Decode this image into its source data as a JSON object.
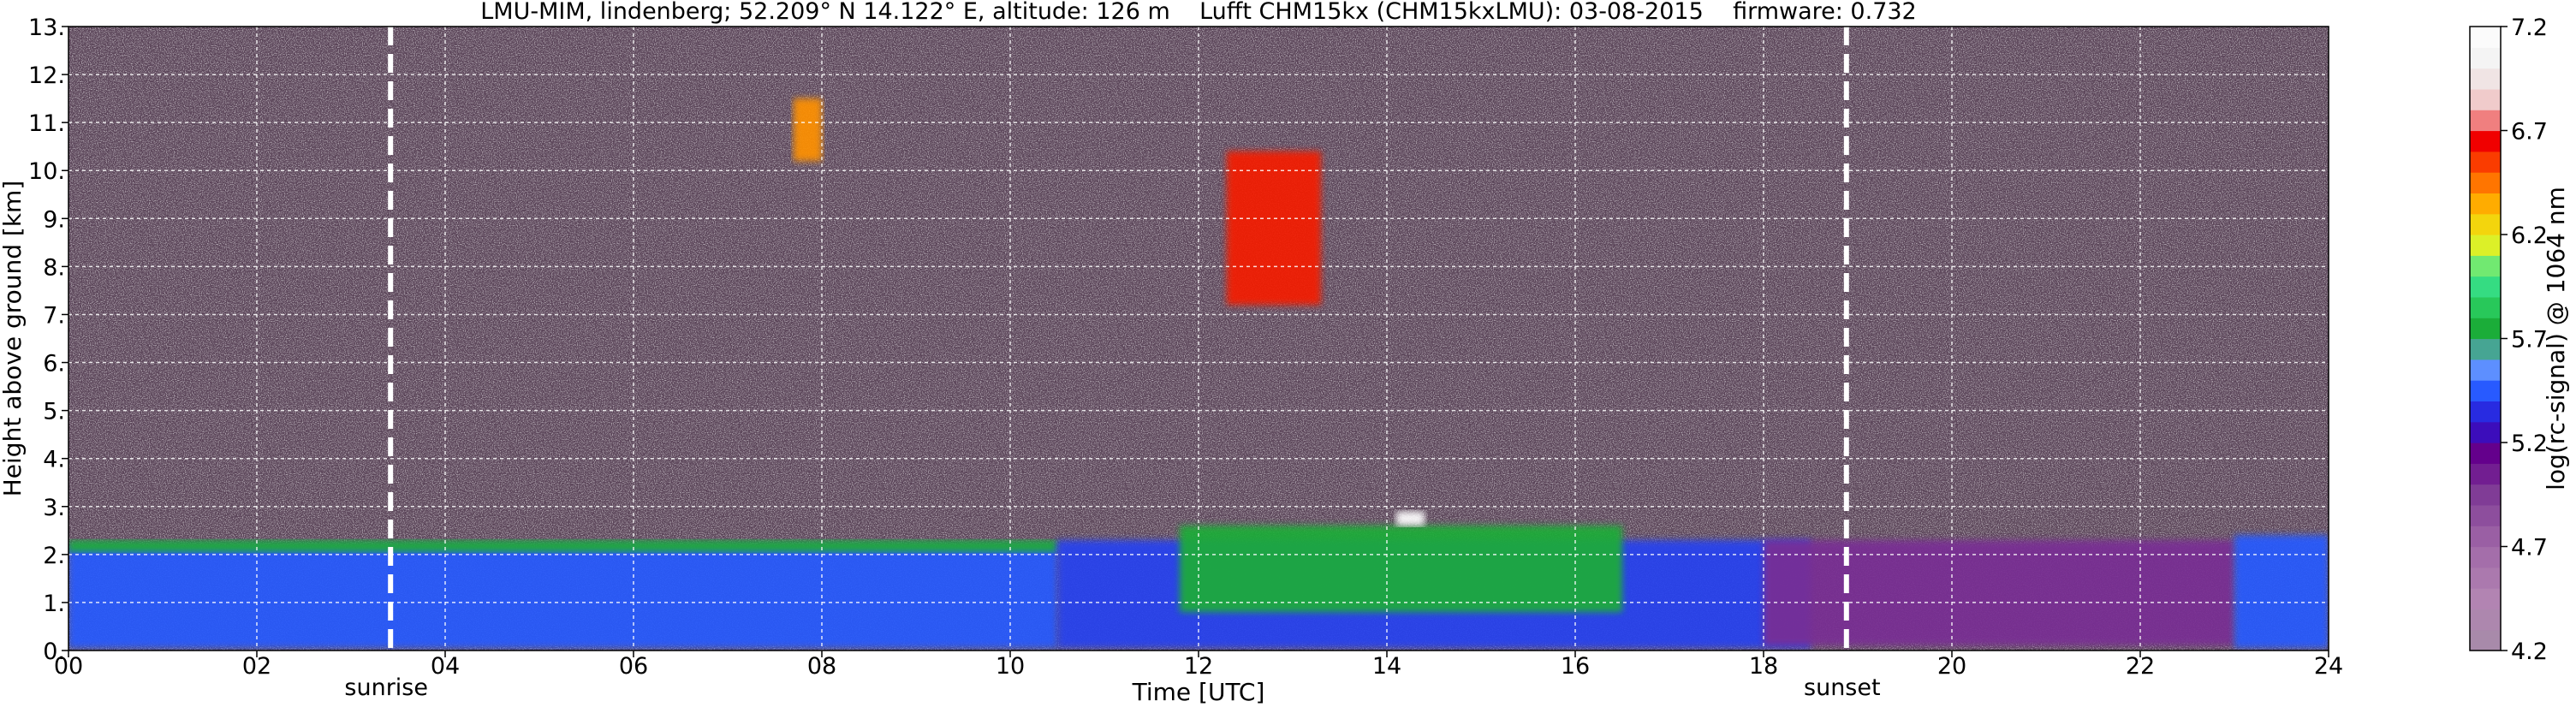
{
  "chart_data": {
    "type": "heatmap",
    "title": "LMU-MIM, lindenberg; 52.209° N 14.122° E, altitude: 126 m    Lufft CHM15kx (CHM15kxLMU): 03-08-2015    firmware: 0.732",
    "xlabel": "Time [UTC]",
    "ylabel": "Height above ground [km]",
    "xlim": [
      0,
      24
    ],
    "ylim": [
      0,
      13
    ],
    "x_ticks": [
      0,
      2,
      4,
      6,
      8,
      10,
      12,
      14,
      16,
      18,
      20,
      22,
      24
    ],
    "x_tick_labels": [
      "00",
      "02",
      "04",
      "06",
      "08",
      "10",
      "12",
      "14",
      "16",
      "18",
      "20",
      "22",
      "24"
    ],
    "y_ticks": [
      0,
      1,
      2,
      3,
      4,
      5,
      6,
      7,
      8,
      9,
      10,
      11,
      12,
      13
    ],
    "y_tick_labels": [
      "0.",
      "1.",
      "2.",
      "3.",
      "4.",
      "5.",
      "6.",
      "7.",
      "8.",
      "9.",
      "10.",
      "11.",
      "12.",
      "13."
    ],
    "grid": true,
    "markers": [
      {
        "label": "sunrise",
        "x": 3.42
      },
      {
        "label": "sunset",
        "x": 18.88
      }
    ],
    "colorbar": {
      "label": "log(rc-signal) @ 1064 nm",
      "range": [
        4.2,
        7.2
      ],
      "tick_values": [
        4.2,
        4.7,
        5.2,
        5.7,
        6.2,
        6.7,
        7.2
      ],
      "tick_labels": [
        "4.2",
        "4.7",
        "5.2",
        "5.7",
        "6.2",
        "6.7",
        "7.2"
      ]
    },
    "features": [
      {
        "x0": 0,
        "x1": 10.5,
        "y0": 0.05,
        "y1": 2.2,
        "value": 5.45
      },
      {
        "x0": 0,
        "x1": 10.5,
        "y0": 2.05,
        "y1": 2.3,
        "value": 5.75
      },
      {
        "x0": 10.5,
        "x1": 18.5,
        "y0": 0.05,
        "y1": 2.3,
        "value": 5.4
      },
      {
        "x0": 11.8,
        "x1": 16.5,
        "y0": 0.8,
        "y1": 2.6,
        "value": 5.75
      },
      {
        "x0": 18.0,
        "x1": 23.0,
        "y0": 0.1,
        "y1": 2.3,
        "value": 5.0
      },
      {
        "x0": 23.0,
        "x1": 24,
        "y0": 0.05,
        "y1": 2.4,
        "value": 5.45
      },
      {
        "x0": 12.3,
        "x1": 13.3,
        "y0": 7.2,
        "y1": 10.4,
        "value": 6.6
      },
      {
        "x0": 7.7,
        "x1": 8.0,
        "y0": 10.2,
        "y1": 11.5,
        "value": 6.4
      },
      {
        "x0": 14.1,
        "x1": 14.4,
        "y0": 2.6,
        "y1": 2.9,
        "value": 7.2
      }
    ]
  }
}
